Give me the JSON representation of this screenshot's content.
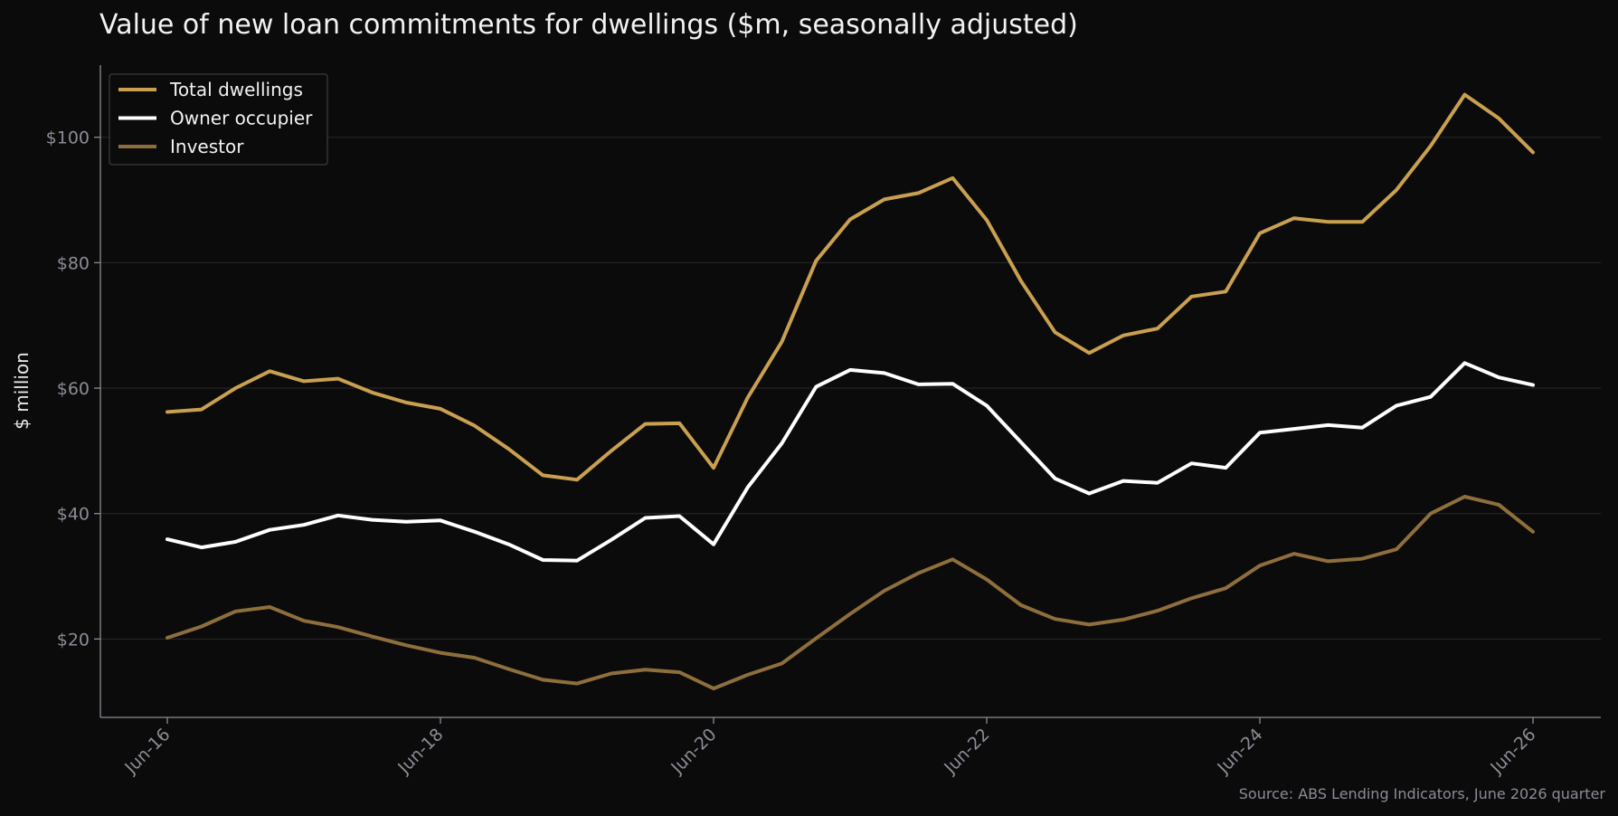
{
  "chart_data": {
    "type": "line",
    "title": "Value of new loan commitments for dwellings ($m, seasonally adjusted)",
    "ylabel": "$ million",
    "xlabel": "",
    "source": "Source: ABS Lending Indicators, June 2026 quarter",
    "ylim": [
      7.5,
      111.5
    ],
    "yticks": [
      20,
      40,
      60,
      80,
      100
    ],
    "ytick_labels": [
      "$20",
      "$40",
      "$60",
      "$80",
      "$100"
    ],
    "xticks": [
      0,
      8,
      16,
      24,
      32,
      40
    ],
    "xtick_labels": [
      "Jun-16",
      "Jun-18",
      "Jun-20",
      "Jun-22",
      "Jun-24",
      "Jun-26"
    ],
    "x": [
      "Jun-16",
      "Sep-16",
      "Dec-16",
      "Mar-17",
      "Jun-17",
      "Sep-17",
      "Dec-17",
      "Mar-18",
      "Jun-18",
      "Sep-18",
      "Dec-18",
      "Mar-19",
      "Jun-19",
      "Sep-19",
      "Dec-19",
      "Mar-20",
      "Jun-20",
      "Sep-20",
      "Dec-20",
      "Mar-21",
      "Jun-21",
      "Sep-21",
      "Dec-21",
      "Mar-22",
      "Jun-22",
      "Sep-22",
      "Dec-22",
      "Mar-23",
      "Jun-23",
      "Sep-23",
      "Dec-23",
      "Mar-24",
      "Jun-24",
      "Sep-24",
      "Dec-24",
      "Mar-25",
      "Jun-25",
      "Sep-25",
      "Dec-25",
      "Mar-26",
      "Jun-26"
    ],
    "grid": true,
    "legend": "top-left",
    "series": [
      {
        "name": "Total dwellings",
        "color": "#c9a050",
        "values": [
          56.2,
          56.6,
          60.0,
          62.7,
          61.1,
          61.5,
          59.3,
          57.7,
          56.7,
          54.0,
          50.3,
          46.1,
          45.4,
          50.0,
          54.3,
          54.4,
          47.3,
          58.5,
          67.4,
          80.3,
          86.9,
          90.1,
          91.1,
          93.5,
          86.8,
          77.1,
          68.9,
          65.6,
          68.4,
          69.5,
          74.6,
          75.4,
          84.7,
          87.1,
          86.5,
          86.5,
          91.6,
          98.6,
          106.8,
          103.0,
          97.6
        ]
      },
      {
        "name": "Owner occupier",
        "color": "#ffffff",
        "values": [
          35.9,
          34.6,
          35.5,
          37.4,
          38.2,
          39.7,
          39.0,
          38.7,
          38.9,
          37.1,
          35.1,
          32.6,
          32.5,
          35.8,
          39.3,
          39.6,
          35.1,
          44.2,
          51.2,
          60.2,
          62.9,
          62.4,
          60.6,
          60.7,
          57.2,
          51.4,
          45.6,
          43.2,
          45.2,
          44.9,
          48.0,
          47.3,
          52.9,
          53.5,
          54.1,
          53.7,
          57.2,
          58.6,
          64.0,
          61.7,
          60.5
        ]
      },
      {
        "name": "Investor",
        "color": "#8e6f3c",
        "values": [
          20.2,
          22.0,
          24.4,
          25.1,
          22.9,
          21.9,
          20.4,
          19.0,
          17.8,
          17.0,
          15.2,
          13.5,
          12.9,
          14.5,
          15.1,
          14.7,
          12.1,
          14.3,
          16.1,
          20.1,
          24.0,
          27.7,
          30.5,
          32.7,
          29.5,
          25.4,
          23.2,
          22.3,
          23.1,
          24.5,
          26.5,
          28.1,
          31.7,
          33.6,
          32.4,
          32.8,
          34.3,
          40.0,
          42.7,
          41.4,
          37.1
        ]
      }
    ]
  }
}
